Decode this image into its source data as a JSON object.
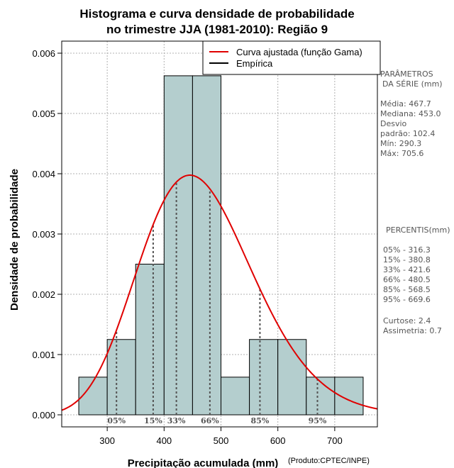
{
  "chart_data": {
    "type": "histogram",
    "title_line1": "Histograma e curva densidade de probabilidade",
    "title_line2": "no trimestre JJA (1981-2010): Região 9",
    "xlabel": "Precipitação acumulada (mm)",
    "ylabel": "Densidade de probabilidade",
    "credit": "(Produto:CPTEC/INPE)",
    "xlim": [
      220,
      775
    ],
    "ylim": [
      -0.0002,
      0.0062
    ],
    "x_ticks": [
      300,
      400,
      500,
      600,
      700
    ],
    "y_ticks": [
      0.0,
      0.001,
      0.002,
      0.003,
      0.004,
      0.005,
      0.006
    ],
    "y_tick_labels": [
      "0.000",
      "0.001",
      "0.002",
      "0.003",
      "0.004",
      "0.005",
      "0.006"
    ],
    "grid": true,
    "bins": [
      {
        "x0": 250,
        "x1": 300,
        "density": 0.000625
      },
      {
        "x0": 300,
        "x1": 350,
        "density": 0.00125
      },
      {
        "x0": 350,
        "x1": 400,
        "density": 0.0025
      },
      {
        "x0": 400,
        "x1": 450,
        "density": 0.005625
      },
      {
        "x0": 450,
        "x1": 500,
        "density": 0.005625
      },
      {
        "x0": 500,
        "x1": 550,
        "density": 0.000625
      },
      {
        "x0": 550,
        "x1": 600,
        "density": 0.00125
      },
      {
        "x0": 600,
        "x1": 650,
        "density": 0.00125
      },
      {
        "x0": 650,
        "x1": 700,
        "density": 0.000625
      },
      {
        "x0": 700,
        "x1": 750,
        "density": 0.000625
      }
    ],
    "fitted_curve": {
      "distribution": "gamma",
      "mean": 467.7,
      "sd": 102.4,
      "color": "#e00000"
    },
    "legend": {
      "placement": "top-right",
      "entries": [
        {
          "label": "Curva ajustada (função Gama)",
          "color": "#e00000"
        },
        {
          "label": "Empírica",
          "color": "#000000"
        }
      ]
    },
    "percentile_markers": [
      {
        "label": "05%",
        "x": 316.3
      },
      {
        "label": "15%",
        "x": 380.8
      },
      {
        "label": "33%",
        "x": 421.6
      },
      {
        "label": "66%",
        "x": 480.5
      },
      {
        "label": "85%",
        "x": 568.5
      },
      {
        "label": "95%",
        "x": 669.6
      }
    ],
    "colors": {
      "bar_fill": "#b4cece",
      "bar_stroke": "#000000",
      "curve": "#e00000",
      "grid": "#b0b0b0",
      "marker": "#555555"
    }
  },
  "side_panel": {
    "params_title1": "PARÂMETROS",
    "params_title2": "DA SÉRIE (mm)",
    "media": "Média:  467.7",
    "mediana": "Mediana:  453.0",
    "desvio1": "Desvio",
    "desvio2": "padrão:  102.4",
    "min": "Mín:  290.3",
    "max": "Máx:  705.6",
    "pct_title": "PERCENTIS(mm)",
    "p05": "05% -   316.3",
    "p15": "15% -   380.8",
    "p33": "33% -   421.6",
    "p66": "66% -   480.5",
    "p85": "85% -   568.5",
    "p95": "95% -   669.6",
    "curtose": "Curtose:  2.4",
    "assimetria": "Assimetria:  0.7"
  }
}
